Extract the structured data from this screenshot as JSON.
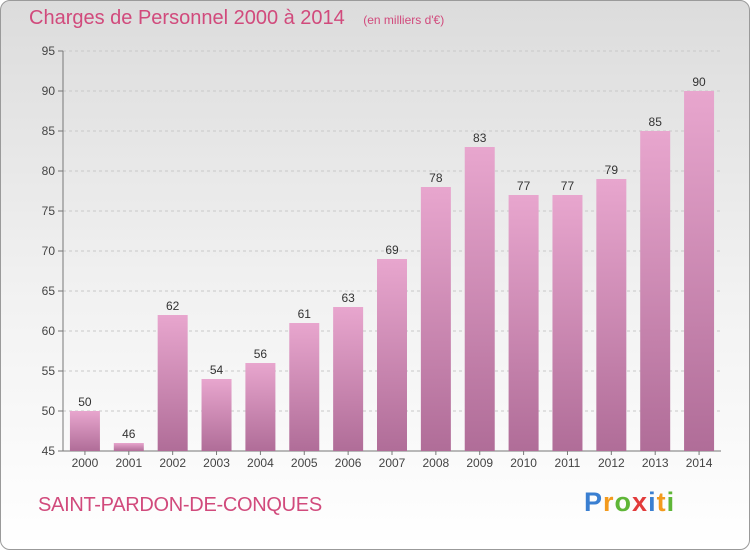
{
  "title": "Charges de Personnel 2000 à 2014",
  "subtitle": "(en milliers d'€)",
  "commune": "SAINT-PARDON-DE-CONQUES",
  "logo": {
    "letters": [
      "P",
      "r",
      "o",
      "x",
      "i",
      "t",
      "i"
    ],
    "colors": [
      "#3a7fd1",
      "#f39a1d",
      "#5fb637",
      "#e23b3b",
      "#3a7fd1",
      "#f39a1d",
      "#5fb637"
    ]
  },
  "colors": {
    "accent": "#d14a7c",
    "bar_top": "#e8a6ce",
    "bar_bottom": "#b06d98"
  },
  "chart_data": {
    "type": "bar",
    "categories": [
      "2000",
      "2001",
      "2002",
      "2003",
      "2004",
      "2005",
      "2006",
      "2007",
      "2008",
      "2009",
      "2010",
      "2011",
      "2012",
      "2013",
      "2014"
    ],
    "values": [
      50,
      46,
      62,
      54,
      56,
      61,
      63,
      69,
      78,
      83,
      77,
      77,
      79,
      85,
      90
    ],
    "ylim": [
      45,
      95
    ],
    "yticks": [
      45,
      50,
      55,
      60,
      65,
      70,
      75,
      80,
      85,
      90,
      95
    ],
    "grid": true
  }
}
